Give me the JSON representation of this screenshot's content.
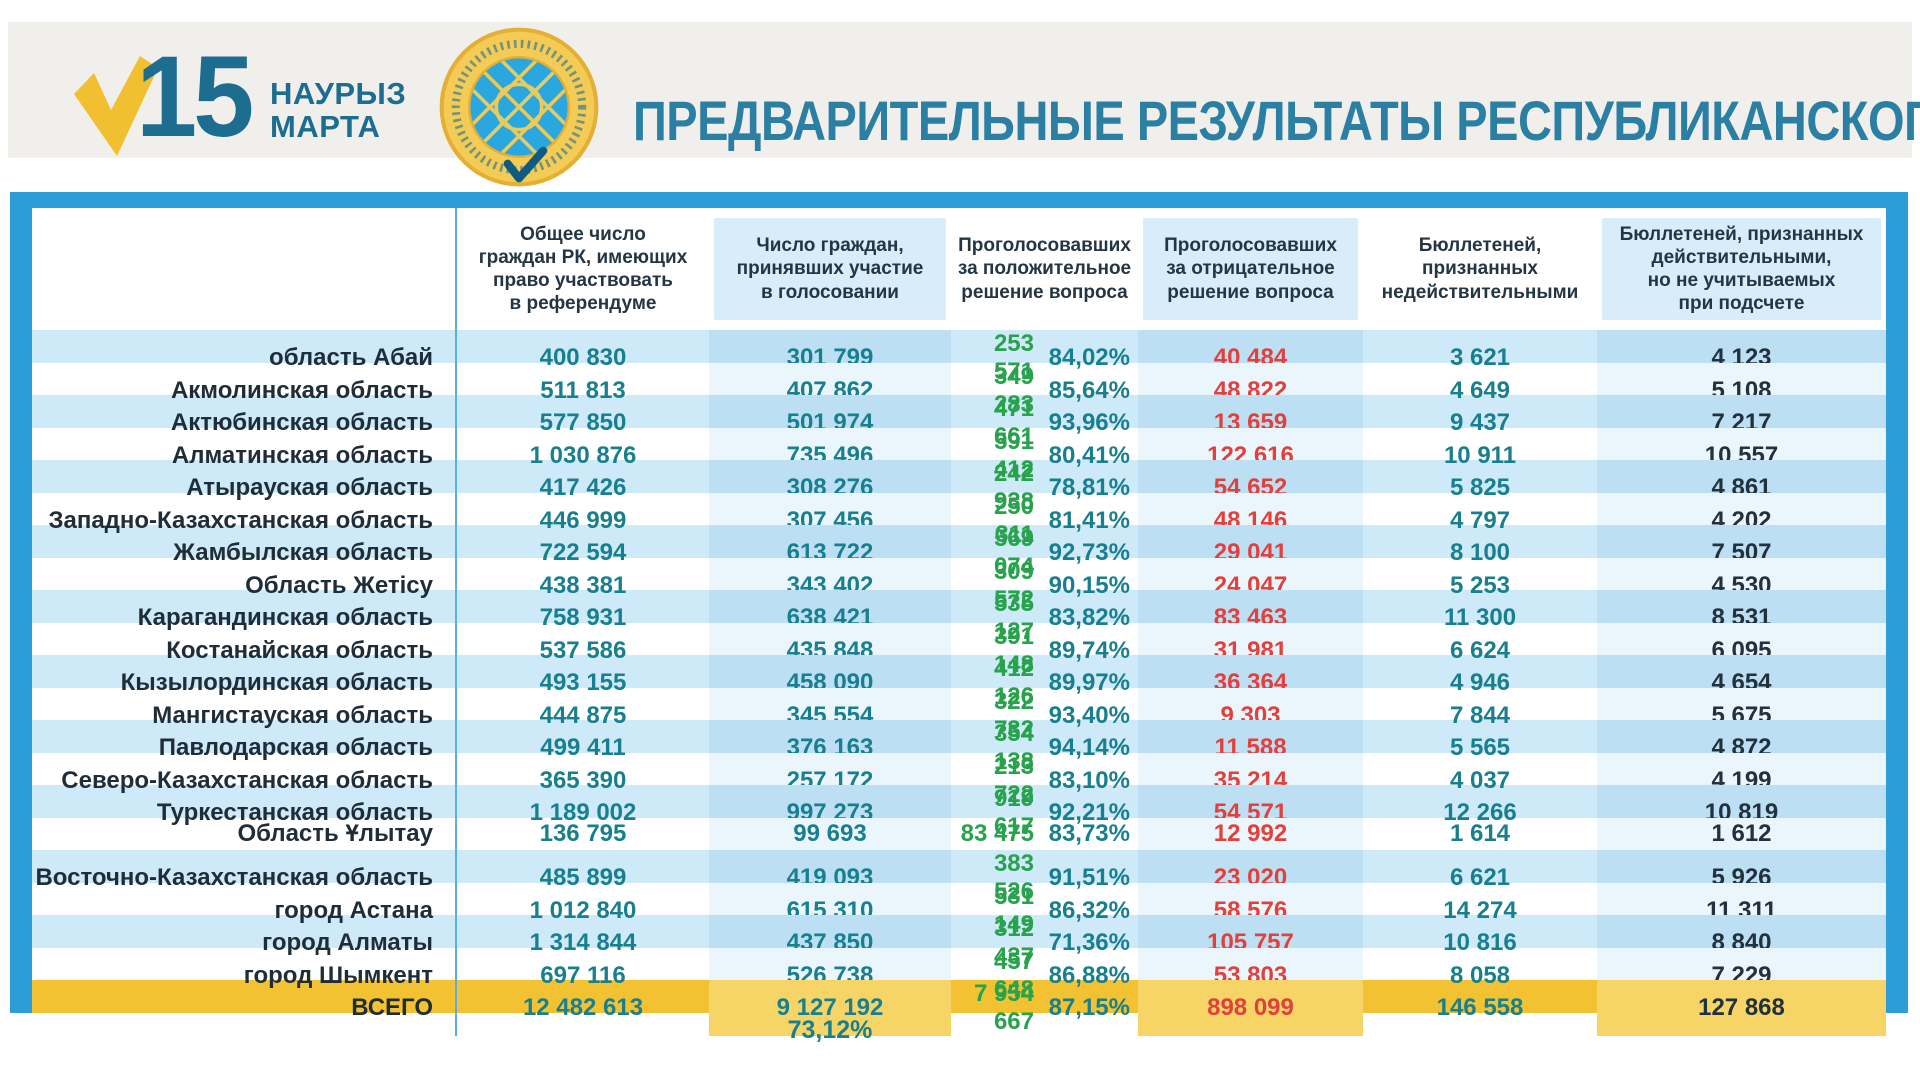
{
  "logo": {
    "day": "15",
    "month_line1": "НАУРЫЗ",
    "month_line2": "МАРТА"
  },
  "title": "ПРЕДВАРИТЕЛЬНЫЕ РЕЗУЛЬТАТЫ РЕСПУБЛИКАНСКОГО РЕФЕРЕНДУМА",
  "chart_data": {
    "type": "table",
    "columns": [
      "Общее число\nграждан РК, имеющих\nправо участвовать\nв референдуме",
      "Число граждан,\nпринявших участие\nв голосовании",
      "Проголосовавших\nза положительное\nрешение вопроса",
      "Проголосовавших\nза отрицательное\nрешение вопроса",
      "Бюллетеней,\nпризнанных\nнедействительными",
      "Бюллетеней, признанных\nдействительными,\nно не учитываемых\nпри подсчете"
    ],
    "rows": [
      {
        "name": "область Абай",
        "eligible": "400 830",
        "participated": "301 799",
        "yes": "253 571",
        "yes_pct": "84,02%",
        "no": "40 484",
        "invalid": "3 621",
        "valid_not_counted": "4 123"
      },
      {
        "name": "Акмолинская область",
        "eligible": "511 813",
        "participated": "407 862",
        "yes": "349 283",
        "yes_pct": "85,64%",
        "no": "48 822",
        "invalid": "4 649",
        "valid_not_counted": "5 108"
      },
      {
        "name": "Актюбинская область",
        "eligible": "577 850",
        "participated": "501 974",
        "yes": "471 661",
        "yes_pct": "93,96%",
        "no": "13 659",
        "invalid": "9 437",
        "valid_not_counted": "7 217"
      },
      {
        "name": "Алматинская область",
        "eligible": "1 030 876",
        "participated": "735 496",
        "yes": "591 412",
        "yes_pct": "80,41%",
        "no": "122 616",
        "invalid": "10 911",
        "valid_not_counted": "10 557"
      },
      {
        "name": "Атырауская область",
        "eligible": "417 426",
        "participated": "308 276",
        "yes": "242 938",
        "yes_pct": "78,81%",
        "no": "54 652",
        "invalid": "5 825",
        "valid_not_counted": "4 861"
      },
      {
        "name": "Западно-Казахстанская область",
        "eligible": "446 999",
        "participated": "307 456",
        "yes": "250 311",
        "yes_pct": "81,41%",
        "no": "48 146",
        "invalid": "4 797",
        "valid_not_counted": "4 202"
      },
      {
        "name": "Жамбылская область",
        "eligible": "722 594",
        "participated": "613 722",
        "yes": "569 074",
        "yes_pct": "92,73%",
        "no": "29 041",
        "invalid": "8 100",
        "valid_not_counted": "7 507"
      },
      {
        "name": "Область Жетісу",
        "eligible": "438 381",
        "participated": "343 402",
        "yes": "309 572",
        "yes_pct": "90,15%",
        "no": "24 047",
        "invalid": "5 253",
        "valid_not_counted": "4 530"
      },
      {
        "name": "Карагандинская область",
        "eligible": "758 931",
        "participated": "638 421",
        "yes": "535 127",
        "yes_pct": "83,82%",
        "no": "83 463",
        "invalid": "11 300",
        "valid_not_counted": "8 531"
      },
      {
        "name": "Костанайская область",
        "eligible": "537 586",
        "participated": "435 848",
        "yes": "391 148",
        "yes_pct": "89,74%",
        "no": "31 981",
        "invalid": "6 624",
        "valid_not_counted": "6 095"
      },
      {
        "name": "Кызылординская область",
        "eligible": "493 155",
        "participated": "458 090",
        "yes": "412 126",
        "yes_pct": "89,97%",
        "no": "36 364",
        "invalid": "4 946",
        "valid_not_counted": "4 654"
      },
      {
        "name": "Мангистауская область",
        "eligible": "444 875",
        "participated": "345 554",
        "yes": "322 732",
        "yes_pct": "93,40%",
        "no": "9 303",
        "invalid": "7 844",
        "valid_not_counted": "5 675"
      },
      {
        "name": "Павлодарская область",
        "eligible": "499 411",
        "participated": "376 163",
        "yes": "354 138",
        "yes_pct": "94,14%",
        "no": "11 588",
        "invalid": "5 565",
        "valid_not_counted": "4 872"
      },
      {
        "name": "Северо-Казахстанская область",
        "eligible": "365 390",
        "participated": "257 172",
        "yes": "213 722",
        "yes_pct": "83,10%",
        "no": "35 214",
        "invalid": "4 037",
        "valid_not_counted": "4 199"
      },
      {
        "name": "Туркестанская область",
        "eligible": "1 189 002",
        "participated": "997 273",
        "yes": "919 617",
        "yes_pct": "92,21%",
        "no": "54 571",
        "invalid": "12 266",
        "valid_not_counted": "10 819"
      },
      {
        "name": "Область Ұлытау",
        "eligible": "136 795",
        "participated": "99 693",
        "yes": "83 475",
        "yes_pct": "83,73%",
        "no": "12 992",
        "invalid": "1 614",
        "valid_not_counted": "1 612"
      },
      {
        "name": "Восточно-Казахстанская область",
        "eligible": "485 899",
        "participated": "419 093",
        "yes": "383 526",
        "yes_pct": "91,51%",
        "no": "23 020",
        "invalid": "6 621",
        "valid_not_counted": "5 926"
      },
      {
        "name": "город Астана",
        "eligible": "1 012 840",
        "participated": "615 310",
        "yes": "531 149",
        "yes_pct": "86,32%",
        "no": "58 576",
        "invalid": "14 274",
        "valid_not_counted": "11 311"
      },
      {
        "name": "город Алматы",
        "eligible": "1 314 844",
        "participated": "437 850",
        "yes": "312 437",
        "yes_pct": "71,36%",
        "no": "105 757",
        "invalid": "10 816",
        "valid_not_counted": "8 840"
      },
      {
        "name": "город Шымкент",
        "eligible": "697 116",
        "participated": "526 738",
        "yes": "457 648",
        "yes_pct": "86,88%",
        "no": "53 803",
        "invalid": "8 058",
        "valid_not_counted": "7 229"
      }
    ],
    "totals": {
      "name": "ВСЕГО",
      "eligible": "12 482 613",
      "participated": "9 127 192",
      "yes": "7 954 667",
      "yes_pct": "87,15%",
      "no": "898 099",
      "invalid": "146 558",
      "valid_not_counted": "127 868"
    },
    "turnout_pct": "73,12%"
  },
  "colors": {
    "frame_blue": "#2d9dd8",
    "stripe_blue": "#cee9f8",
    "stripe_band_blue": "#bddff3",
    "header_band_blue": "#d7edf9",
    "total_gold": "#f2c233",
    "total_gold_band": "#f6d466",
    "number_teal": "#187f8f",
    "number_green": "#28a24c",
    "number_red": "#e2403c",
    "text_dark": "#21313d",
    "title_teal": "#2a7fa2",
    "banner_grey": "#f1efec",
    "logo_gold": "#f0c030"
  }
}
